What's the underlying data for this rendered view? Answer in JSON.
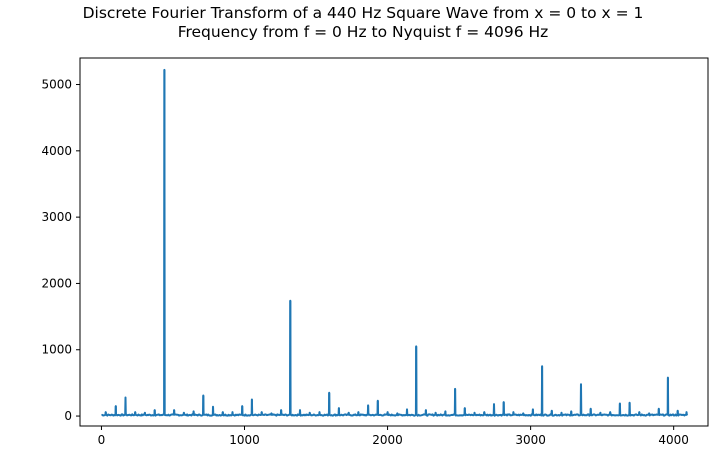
{
  "chart_data": {
    "type": "line",
    "title": [
      "Discrete Fourier Transform of a 440 Hz Square Wave from x = 0 to x = 1",
      "Frequency from f = 0 Hz to Nyquist f = 4096 Hz"
    ],
    "xlabel": "",
    "ylabel": "",
    "xlim": [
      -150,
      4240
    ],
    "ylim": [
      -150,
      5400
    ],
    "x_ticks": [
      0,
      1000,
      2000,
      3000,
      4000
    ],
    "y_ticks": [
      0,
      1000,
      2000,
      3000,
      4000,
      5000
    ],
    "grid": false,
    "line_color": "#1f77b4",
    "baseline": 20,
    "peaks": [
      {
        "x": 30,
        "y": 60
      },
      {
        "x": 100,
        "y": 150
      },
      {
        "x": 168,
        "y": 280
      },
      {
        "x": 236,
        "y": 60
      },
      {
        "x": 304,
        "y": 50
      },
      {
        "x": 372,
        "y": 90
      },
      {
        "x": 440,
        "y": 5220
      },
      {
        "x": 508,
        "y": 90
      },
      {
        "x": 576,
        "y": 50
      },
      {
        "x": 644,
        "y": 70
      },
      {
        "x": 712,
        "y": 310
      },
      {
        "x": 780,
        "y": 140
      },
      {
        "x": 848,
        "y": 60
      },
      {
        "x": 916,
        "y": 60
      },
      {
        "x": 984,
        "y": 150
      },
      {
        "x": 1052,
        "y": 250
      },
      {
        "x": 1120,
        "y": 60
      },
      {
        "x": 1188,
        "y": 40
      },
      {
        "x": 1256,
        "y": 90
      },
      {
        "x": 1320,
        "y": 1740
      },
      {
        "x": 1388,
        "y": 90
      },
      {
        "x": 1456,
        "y": 50
      },
      {
        "x": 1524,
        "y": 60
      },
      {
        "x": 1592,
        "y": 350
      },
      {
        "x": 1660,
        "y": 120
      },
      {
        "x": 1728,
        "y": 50
      },
      {
        "x": 1796,
        "y": 60
      },
      {
        "x": 1864,
        "y": 160
      },
      {
        "x": 1932,
        "y": 230
      },
      {
        "x": 2000,
        "y": 60
      },
      {
        "x": 2068,
        "y": 40
      },
      {
        "x": 2136,
        "y": 100
      },
      {
        "x": 2200,
        "y": 1050
      },
      {
        "x": 2268,
        "y": 90
      },
      {
        "x": 2336,
        "y": 50
      },
      {
        "x": 2404,
        "y": 70
      },
      {
        "x": 2472,
        "y": 410
      },
      {
        "x": 2540,
        "y": 120
      },
      {
        "x": 2608,
        "y": 50
      },
      {
        "x": 2676,
        "y": 60
      },
      {
        "x": 2744,
        "y": 180
      },
      {
        "x": 2812,
        "y": 210
      },
      {
        "x": 2880,
        "y": 60
      },
      {
        "x": 2948,
        "y": 40
      },
      {
        "x": 3016,
        "y": 100
      },
      {
        "x": 3080,
        "y": 750
      },
      {
        "x": 3148,
        "y": 80
      },
      {
        "x": 3216,
        "y": 50
      },
      {
        "x": 3284,
        "y": 70
      },
      {
        "x": 3352,
        "y": 480
      },
      {
        "x": 3420,
        "y": 110
      },
      {
        "x": 3488,
        "y": 50
      },
      {
        "x": 3556,
        "y": 60
      },
      {
        "x": 3624,
        "y": 190
      },
      {
        "x": 3692,
        "y": 200
      },
      {
        "x": 3760,
        "y": 60
      },
      {
        "x": 3828,
        "y": 40
      },
      {
        "x": 3896,
        "y": 110
      },
      {
        "x": 3960,
        "y": 580
      },
      {
        "x": 4028,
        "y": 80
      },
      {
        "x": 4090,
        "y": 60
      }
    ]
  }
}
